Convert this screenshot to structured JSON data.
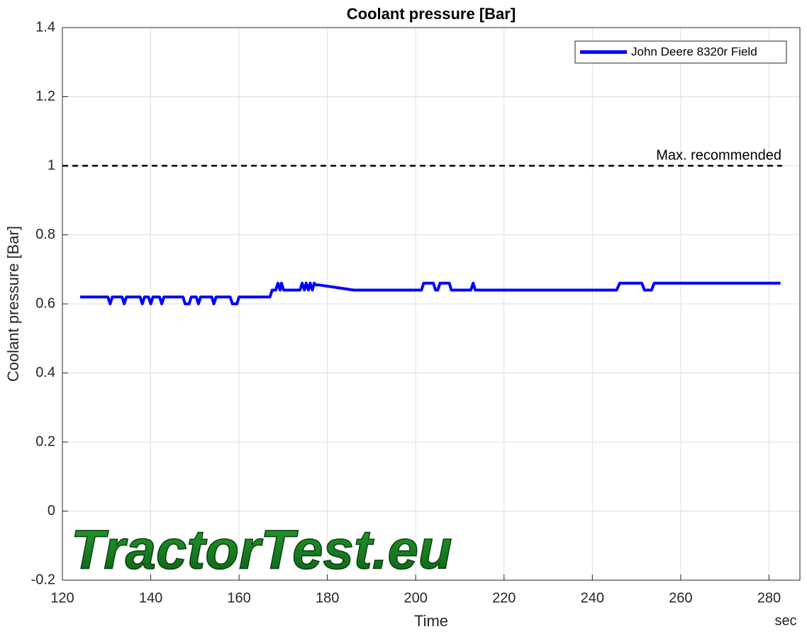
{
  "chart_data": {
    "type": "line",
    "title": "Coolant pressure [Bar]",
    "x_label": "Time",
    "x_unit": "sec",
    "y_label": "Coolant pressure [Bar]",
    "watermark": "TractorTest.eu",
    "legend": "northeast",
    "grid": true,
    "xlim": [
      120,
      287
    ],
    "xticks": [
      120,
      140,
      160,
      180,
      200,
      220,
      240,
      260,
      280
    ],
    "ylim": [
      -0.2,
      1.4
    ],
    "yticks": [
      -0.2,
      0,
      0.2,
      0.4,
      0.6,
      0.8,
      1,
      1.2,
      1.4
    ],
    "reference_line": {
      "value": 1,
      "label": "Max. recommended",
      "color": "#000000"
    },
    "x": [
      124,
      130.3,
      130.8,
      131.3,
      133.5,
      134,
      134.5,
      137.6,
      138.1,
      138.6,
      139.5,
      140,
      140.5,
      142,
      142.5,
      143,
      147.3,
      147.8,
      148.7,
      149.2,
      150.3,
      150.8,
      151.3,
      153.8,
      154.3,
      154.8,
      158,
      158.5,
      159.5,
      160,
      167,
      167.5,
      168.3,
      168.8,
      169.3,
      169.6,
      170.1,
      173.8,
      174.3,
      174.8,
      175.2,
      175.7,
      176.1,
      176.6,
      177,
      177.4,
      178,
      186,
      201.3,
      201.8,
      204,
      204.5,
      205,
      205.5,
      207.6,
      208.1,
      208.6,
      212.5,
      213,
      213.5,
      245.5,
      246.2,
      251.2,
      251.8,
      253.4,
      254,
      282.6
    ],
    "series": [
      {
        "name": "John Deere 8320r Field",
        "color": "#0000ff",
        "values": [
          0.62,
          0.62,
          0.6,
          0.62,
          0.62,
          0.6,
          0.62,
          0.62,
          0.6,
          0.62,
          0.62,
          0.6,
          0.62,
          0.62,
          0.6,
          0.62,
          0.62,
          0.6,
          0.6,
          0.62,
          0.62,
          0.6,
          0.62,
          0.62,
          0.6,
          0.62,
          0.62,
          0.6,
          0.6,
          0.62,
          0.62,
          0.64,
          0.64,
          0.66,
          0.64,
          0.66,
          0.64,
          0.64,
          0.66,
          0.64,
          0.66,
          0.64,
          0.66,
          0.64,
          0.66,
          0.655,
          0.655,
          0.64,
          0.64,
          0.66,
          0.66,
          0.64,
          0.64,
          0.66,
          0.66,
          0.64,
          0.64,
          0.64,
          0.66,
          0.64,
          0.64,
          0.66,
          0.66,
          0.64,
          0.64,
          0.66,
          0.66
        ]
      }
    ]
  }
}
